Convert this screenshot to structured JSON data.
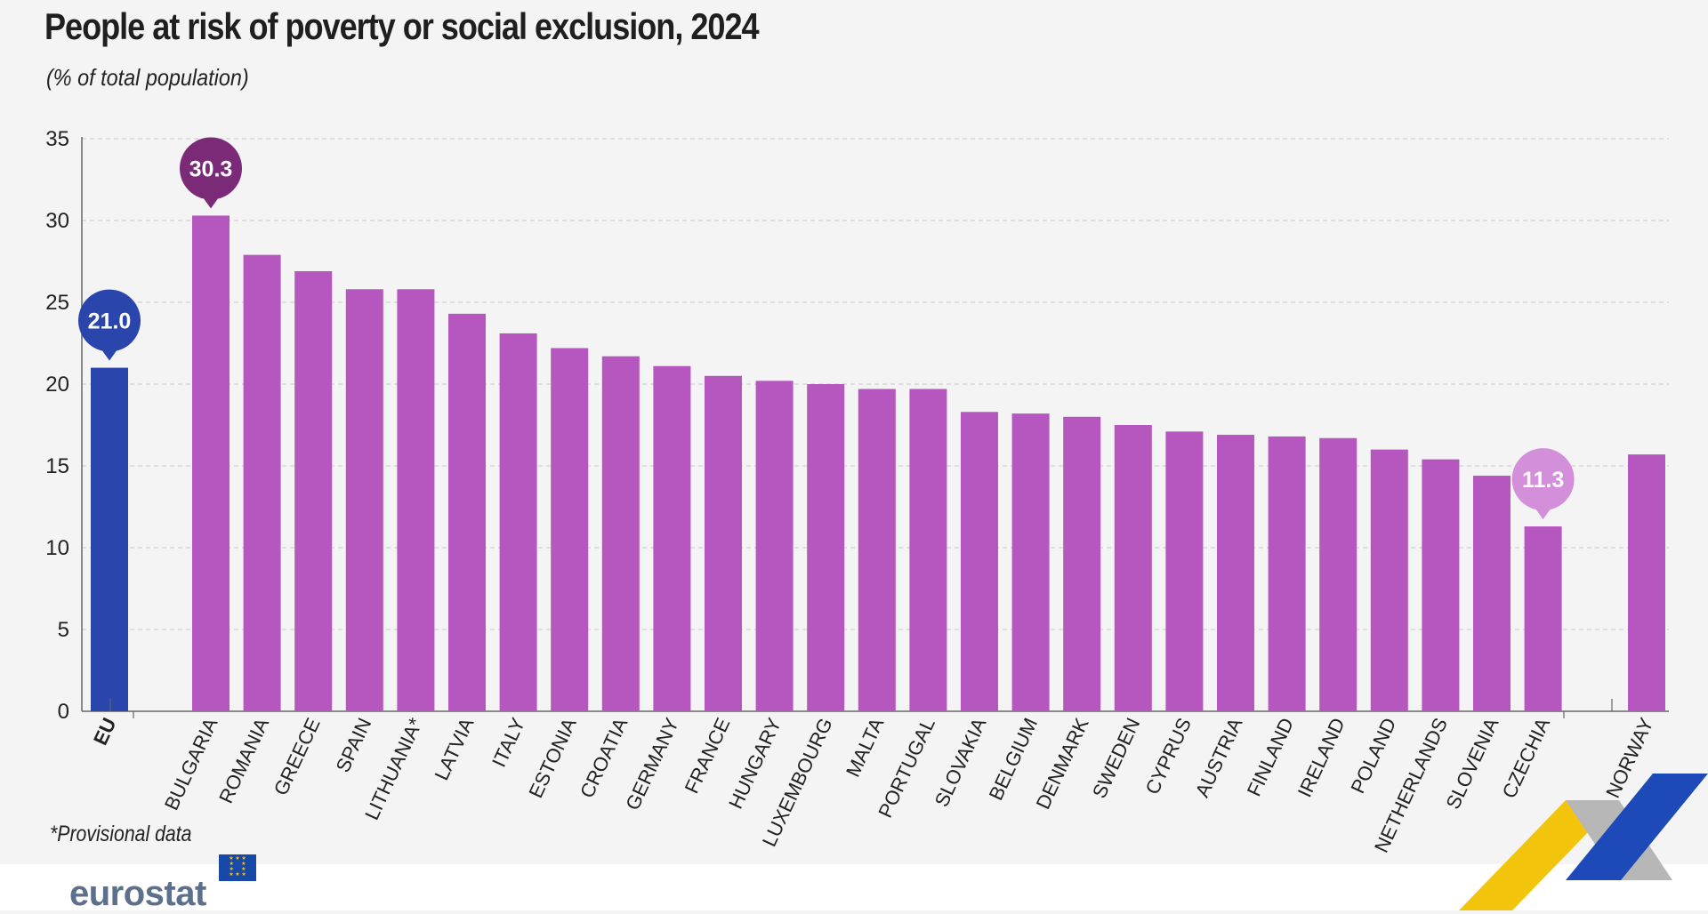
{
  "header": {
    "title": "People at risk of poverty or social exclusion, 2024",
    "subtitle": "(% of total population)"
  },
  "footnote": "*Provisional data",
  "brand": {
    "logo_text": "eurostat"
  },
  "colors": {
    "eu_bar": "#2a46ad",
    "country_bar": "#b657bf",
    "callout_max": "#7b2a78",
    "callout_min": "#d38fd9",
    "callout_eu": "#2a46ad",
    "grid": "#c9c9c9",
    "axis_text": "#222222"
  },
  "chart_data": {
    "type": "bar",
    "title": "People at risk of poverty or social exclusion, 2024",
    "ylabel": "% of total population",
    "xlabel": "",
    "ylim": [
      0,
      35
    ],
    "yticks": [
      0,
      5,
      10,
      15,
      20,
      25,
      30,
      35
    ],
    "grid": true,
    "categories": [
      "EU",
      "BULGARIA",
      "ROMANIA",
      "GREECE",
      "SPAIN",
      "LITHUANIA*",
      "LATVIA",
      "ITALY",
      "ESTONIA",
      "CROATIA",
      "GERMANY",
      "FRANCE",
      "HUNGARY",
      "LUXEMBOURG",
      "MALTA",
      "PORTUGAL",
      "SLOVAKIA",
      "BELGIUM",
      "DENMARK",
      "SWEDEN",
      "CYPRUS",
      "AUSTRIA",
      "FINLAND",
      "IRELAND",
      "POLAND",
      "NETHERLANDS",
      "SLOVENIA",
      "CZECHIA",
      "NORWAY"
    ],
    "values": [
      21.0,
      30.3,
      27.9,
      26.9,
      25.8,
      25.8,
      24.3,
      23.1,
      22.2,
      21.7,
      21.1,
      20.5,
      20.2,
      20.0,
      19.7,
      19.7,
      18.3,
      18.2,
      18.0,
      17.5,
      17.1,
      16.9,
      16.8,
      16.7,
      16.0,
      15.4,
      14.4,
      11.3,
      15.7
    ],
    "groups": [
      "eu",
      "country",
      "country",
      "country",
      "country",
      "country",
      "country",
      "country",
      "country",
      "country",
      "country",
      "country",
      "country",
      "country",
      "country",
      "country",
      "country",
      "country",
      "country",
      "country",
      "country",
      "country",
      "country",
      "country",
      "country",
      "country",
      "country",
      "country",
      "other"
    ],
    "callouts": [
      {
        "category": "EU",
        "label": "21.0",
        "style": "eu"
      },
      {
        "category": "BULGARIA",
        "label": "30.3",
        "style": "max"
      },
      {
        "category": "CZECHIA",
        "label": "11.3",
        "style": "min"
      }
    ]
  }
}
